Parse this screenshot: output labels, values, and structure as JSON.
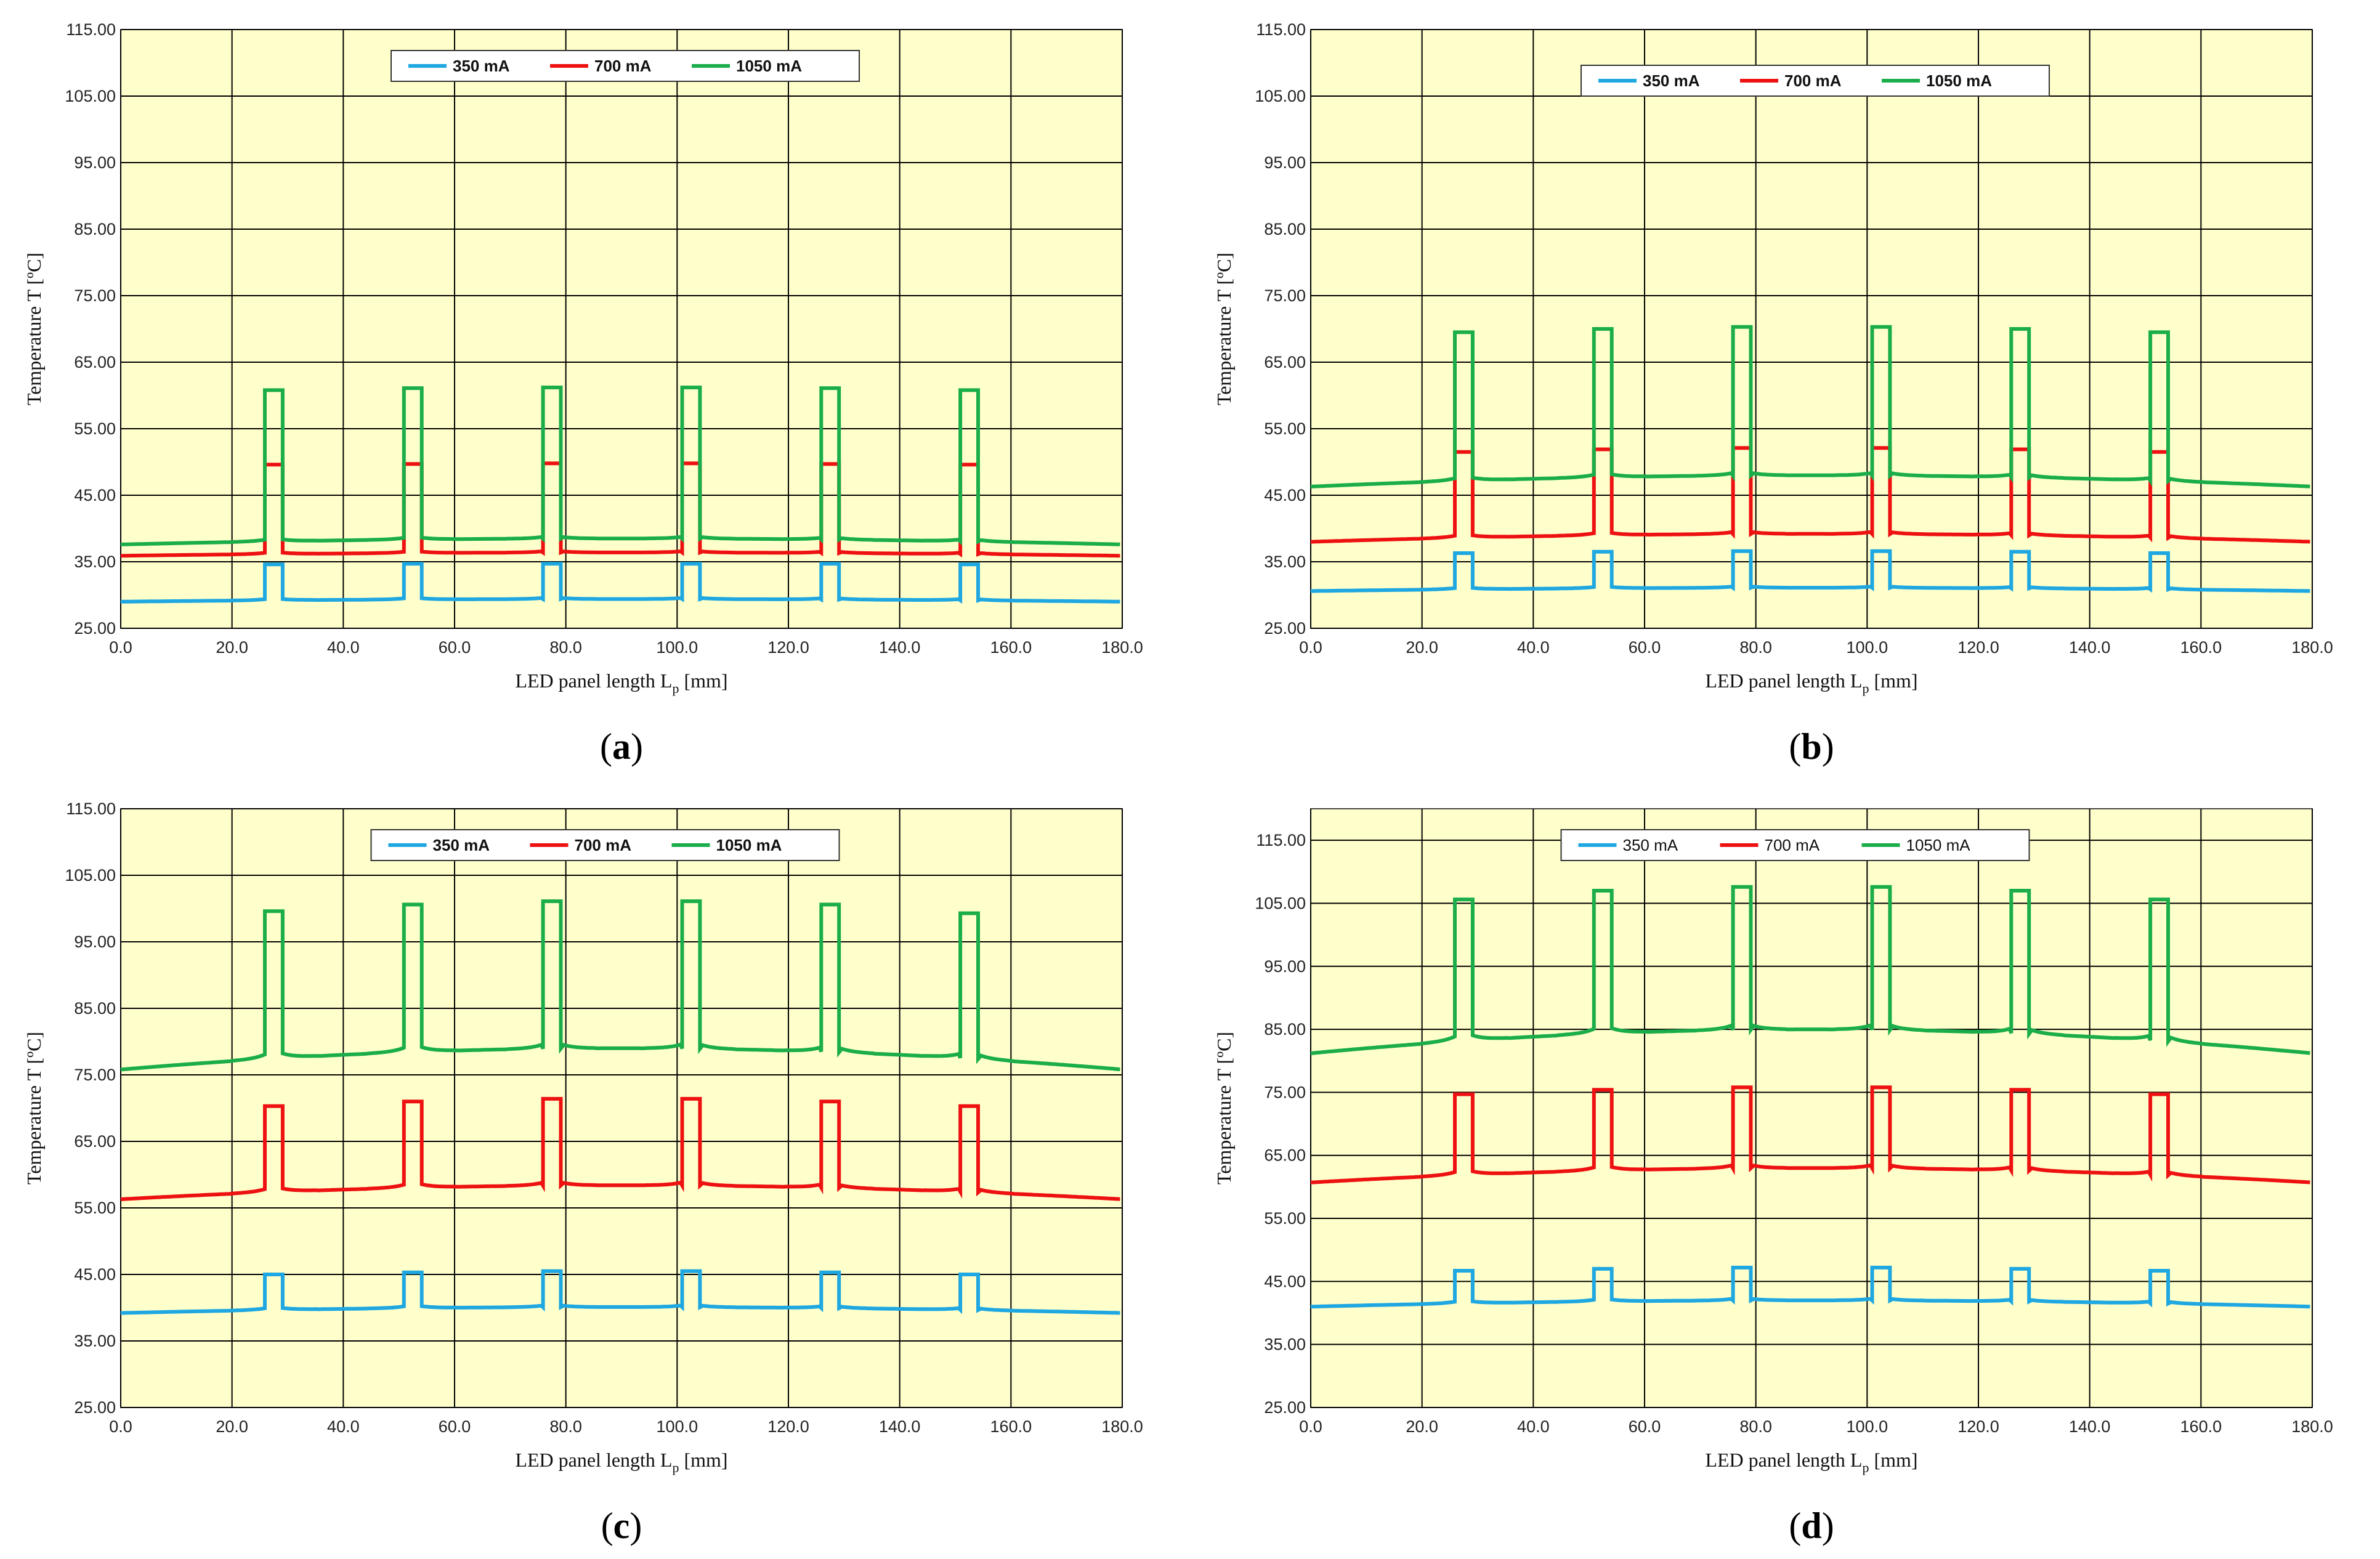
{
  "figure": {
    "captions": [
      "(a)",
      "(b)",
      "(c)",
      "(d)"
    ],
    "caption_letters": [
      "a",
      "b",
      "c",
      "d"
    ]
  },
  "colors": {
    "plot_bg": "#ffffcc",
    "grid": "#000000",
    "series_350": "#1ea7e0",
    "series_700": "#ee1111",
    "series_1050": "#1aad4a"
  },
  "chart_data": [
    {
      "type": "line",
      "panel": "a",
      "xlabel": "LED panel length L",
      "xlabel_sub": "p",
      "xlabel_unit": "[mm]",
      "ylabel": "Temperature T [ºC]",
      "xlim": [
        0,
        180
      ],
      "ylim": [
        25,
        115
      ],
      "x_ticks": [
        "0.0",
        "20.0",
        "40.0",
        "60.0",
        "80.0",
        "100.0",
        "120.0",
        "140.0",
        "160.0",
        "180.0"
      ],
      "y_ticks": [
        "25.00",
        "35.00",
        "45.00",
        "55.00",
        "65.00",
        "75.00",
        "85.00",
        "95.00",
        "105.00",
        "115.00"
      ],
      "legend_bold": true,
      "legend": [
        "350 mA",
        "700 mA",
        "1050 mA"
      ],
      "led_x": [
        27.5,
        52.5,
        77.5,
        102.5,
        127.5,
        152.5
      ],
      "series": [
        {
          "name": "350 mA",
          "base_edge": 29.0,
          "base_mid": 29.4,
          "peak": [
            34.6,
            34.7,
            34.7,
            34.7,
            34.7,
            34.6
          ]
        },
        {
          "name": "700 mA",
          "base_edge": 35.9,
          "base_mid": 36.4,
          "peak": [
            49.6,
            49.7,
            49.8,
            49.8,
            49.7,
            49.6
          ]
        },
        {
          "name": "1050 mA",
          "base_edge": 37.6,
          "base_mid": 38.5,
          "peak": [
            60.8,
            61.1,
            61.2,
            61.2,
            61.1,
            60.8
          ]
        }
      ]
    },
    {
      "type": "line",
      "panel": "b",
      "xlabel": "LED panel length L",
      "xlabel_sub": "p",
      "xlabel_unit": "[mm]",
      "ylabel": "Temperature T [ºC]",
      "xlim": [
        0,
        180
      ],
      "ylim": [
        25,
        115
      ],
      "x_ticks": [
        "0.0",
        "20.0",
        "40.0",
        "60.0",
        "80.0",
        "100.0",
        "120.0",
        "140.0",
        "160.0",
        "180.0"
      ],
      "y_ticks": [
        "25.00",
        "35.00",
        "45.00",
        "55.00",
        "65.00",
        "75.00",
        "85.00",
        "95.00",
        "105.00",
        "115.00"
      ],
      "legend_bold": true,
      "legend": [
        "350 mA",
        "700 mA",
        "1050 mA"
      ],
      "led_x": [
        27.5,
        52.5,
        77.5,
        102.5,
        127.5,
        152.5
      ],
      "series": [
        {
          "name": "350 mA",
          "base_edge": 30.6,
          "base_mid": 31.1,
          "peak": [
            36.3,
            36.5,
            36.6,
            36.6,
            36.5,
            36.3
          ]
        },
        {
          "name": "700 mA",
          "base_edge": 38.0,
          "base_mid": 39.2,
          "peak": [
            51.5,
            51.9,
            52.1,
            52.1,
            51.9,
            51.5
          ]
        },
        {
          "name": "1050 mA",
          "base_edge": 46.3,
          "base_mid": 48.0,
          "peak": [
            69.5,
            70.0,
            70.3,
            70.3,
            70.0,
            69.5
          ]
        }
      ]
    },
    {
      "type": "line",
      "panel": "c",
      "xlabel": "LED panel length L",
      "xlabel_sub": "p",
      "xlabel_unit": "[mm]",
      "ylabel": "Temperature T [ºC]",
      "xlim": [
        0,
        180
      ],
      "ylim": [
        25,
        115
      ],
      "x_ticks": [
        "0.0",
        "20.0",
        "40.0",
        "60.0",
        "80.0",
        "100.0",
        "120.0",
        "140.0",
        "160.0",
        "180.0"
      ],
      "y_ticks": [
        "25.00",
        "35.00",
        "45.00",
        "55.00",
        "65.00",
        "75.00",
        "85.00",
        "95.00",
        "105.00",
        "115.00"
      ],
      "legend_bold": true,
      "legend": [
        "350 mA",
        "700 mA",
        "1050 mA"
      ],
      "led_x": [
        27.5,
        52.5,
        77.5,
        102.5,
        127.5,
        152.5
      ],
      "series": [
        {
          "name": "350 mA",
          "base_edge": 39.2,
          "base_mid": 40.1,
          "peak": [
            45.0,
            45.3,
            45.5,
            45.5,
            45.3,
            45.0
          ]
        },
        {
          "name": "700 mA",
          "base_edge": 56.3,
          "base_mid": 58.4,
          "peak": [
            70.3,
            71.0,
            71.4,
            71.4,
            71.0,
            70.3
          ]
        },
        {
          "name": "1050 mA",
          "base_edge": 75.8,
          "base_mid": 79.0,
          "peak": [
            99.6,
            100.6,
            101.1,
            101.1,
            100.6,
            99.3
          ]
        }
      ]
    },
    {
      "type": "line",
      "panel": "d",
      "xlabel": "LED panel length L",
      "xlabel_sub": "p",
      "xlabel_unit": "[mm]",
      "ylabel": "Temperature T [ºC]",
      "xlim": [
        0,
        180
      ],
      "ylim": [
        25,
        120
      ],
      "x_ticks": [
        "0.0",
        "20.0",
        "40.0",
        "60.0",
        "80.0",
        "100.0",
        "120.0",
        "140.0",
        "160.0",
        "180.0"
      ],
      "y_ticks": [
        "25.00",
        "35.00",
        "45.00",
        "55.00",
        "65.00",
        "75.00",
        "85.00",
        "95.00",
        "105.00",
        "115.00"
      ],
      "legend_bold": false,
      "legend": [
        "350 mA",
        "700 mA",
        "1050 mA"
      ],
      "led_x": [
        27.5,
        52.5,
        77.5,
        102.5,
        127.5,
        152.5
      ],
      "series": [
        {
          "name": "350 mA",
          "base_edge": 41.0,
          "base_mid": 42.0,
          "peak": [
            46.7,
            47.0,
            47.2,
            47.2,
            47.0,
            46.7
          ]
        },
        {
          "name": "700 mA",
          "base_edge": 60.7,
          "base_mid": 63.0,
          "peak": [
            74.7,
            75.4,
            75.8,
            75.8,
            75.4,
            74.7
          ]
        },
        {
          "name": "1050 mA",
          "base_edge": 81.2,
          "base_mid": 85.0,
          "peak": [
            105.6,
            107.0,
            107.6,
            107.6,
            107.0,
            105.6
          ]
        }
      ]
    }
  ]
}
